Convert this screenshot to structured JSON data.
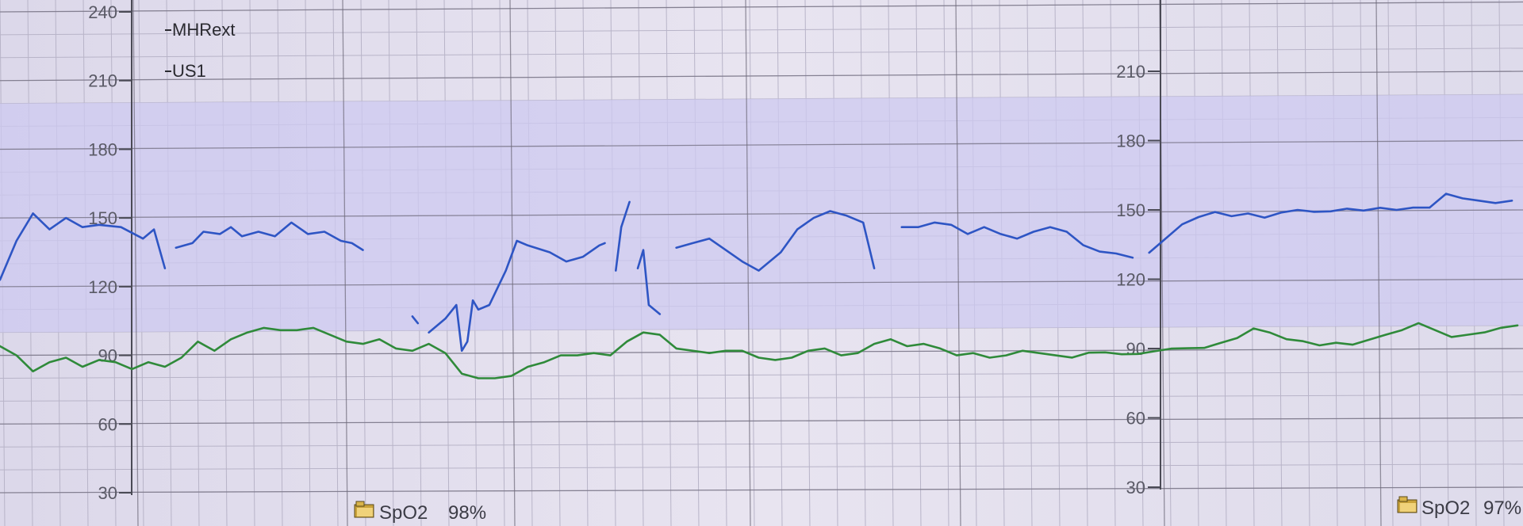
{
  "legend": {
    "series1": "MHRext",
    "series2": "US1"
  },
  "left_panel": {
    "ticks": [
      "240",
      "210",
      "180",
      "150",
      "120",
      "90",
      "60",
      "30"
    ],
    "spo2_label": "SpO2",
    "spo2_value": "98%",
    "spo2_icon": "folder-icon"
  },
  "right_panel": {
    "ticks": [
      "210",
      "180",
      "150",
      "120",
      "90",
      "60",
      "30"
    ],
    "spo2_label": "SpO2",
    "spo2_value": "97%",
    "spo2_icon": "folder-icon"
  },
  "colors": {
    "grid_bg": "#e6e2ee",
    "normal_band": "#cdcaf0",
    "grid_line_minor": "#b8b4c8",
    "grid_line_major": "#6e6a7a",
    "mhrext_line": "#2e55c4",
    "us1_line": "#2f8a3a"
  },
  "chart_data": [
    {
      "type": "line",
      "title": "",
      "xlabel": "",
      "ylabel": "",
      "ylim": [
        30,
        240
      ],
      "y_ticks": [
        30,
        60,
        90,
        120,
        150,
        180,
        210,
        240
      ],
      "shaded_band": [
        100,
        200
      ],
      "grid": true,
      "legend_placement": "top-left",
      "series": [
        {
          "name": "MHRext",
          "points": [
            [
              0,
              123
            ],
            [
              0.03,
              140
            ],
            [
              0.06,
              152
            ],
            [
              0.09,
              145
            ],
            [
              0.12,
              150
            ],
            [
              0.15,
              146
            ],
            [
              0.18,
              147
            ],
            [
              0.22,
              146
            ],
            [
              0.26,
              141
            ],
            [
              0.28,
              145
            ],
            [
              0.3,
              128
            ],
            null,
            [
              0.32,
              137
            ],
            [
              0.35,
              139
            ],
            [
              0.37,
              144
            ],
            [
              0.4,
              143
            ],
            [
              0.42,
              146
            ],
            [
              0.44,
              142
            ],
            [
              0.47,
              144
            ],
            [
              0.5,
              142
            ],
            [
              0.53,
              148
            ],
            [
              0.56,
              143
            ],
            [
              0.59,
              144
            ],
            [
              0.62,
              140
            ],
            [
              0.64,
              139
            ],
            [
              0.66,
              136
            ],
            null,
            [
              0.75,
              107
            ],
            [
              0.76,
              104
            ],
            null,
            [
              0.78,
              100
            ],
            [
              0.81,
              106
            ],
            [
              0.83,
              112
            ],
            [
              0.84,
              92
            ],
            [
              0.85,
              96
            ],
            [
              0.86,
              114
            ],
            [
              0.87,
              110
            ],
            [
              0.89,
              112
            ],
            [
              0.92,
              127
            ],
            [
              0.94,
              140
            ],
            [
              0.96,
              138
            ],
            [
              1.0,
              135
            ],
            [
              1.03,
              131
            ],
            [
              1.06,
              133
            ],
            [
              1.09,
              138
            ],
            [
              1.1,
              139
            ],
            null,
            [
              1.12,
              127
            ],
            [
              1.13,
              146
            ],
            [
              1.145,
              157
            ],
            null,
            [
              1.16,
              128
            ],
            [
              1.17,
              136
            ],
            [
              1.18,
              112
            ],
            [
              1.2,
              108
            ],
            null,
            [
              1.23,
              137
            ],
            [
              1.26,
              139
            ],
            [
              1.29,
              141
            ],
            [
              1.32,
              136
            ],
            [
              1.35,
              131
            ],
            [
              1.38,
              127
            ],
            [
              1.42,
              135
            ],
            [
              1.45,
              145
            ],
            [
              1.48,
              150
            ],
            [
              1.51,
              153
            ],
            [
              1.54,
              151
            ],
            [
              1.57,
              148
            ],
            [
              1.59,
              128
            ],
            null,
            [
              1.64,
              146
            ],
            [
              1.67,
              146
            ],
            [
              1.7,
              148
            ],
            [
              1.73,
              147
            ],
            [
              1.76,
              143
            ],
            [
              1.79,
              146
            ],
            [
              1.82,
              143
            ],
            [
              1.85,
              141
            ],
            [
              1.88,
              144
            ],
            [
              1.91,
              146
            ],
            [
              1.94,
              144
            ],
            [
              1.97,
              138
            ],
            [
              2.0,
              135
            ],
            [
              2.03,
              134
            ],
            [
              2.06,
              132
            ],
            null,
            [
              2.09,
              134
            ],
            [
              2.12,
              140
            ],
            [
              2.15,
              146
            ],
            [
              2.18,
              149
            ],
            [
              2.21,
              151
            ],
            [
              2.24,
              149
            ],
            [
              2.27,
              150
            ],
            [
              2.3,
              148
            ],
            [
              2.33,
              150
            ],
            [
              2.36,
              151
            ],
            [
              2.39,
              150
            ],
            [
              2.42,
              150
            ],
            [
              2.45,
              151
            ],
            [
              2.48,
              150
            ],
            [
              2.51,
              151
            ],
            [
              2.54,
              150
            ],
            [
              2.57,
              151
            ],
            [
              2.6,
              151
            ],
            [
              2.63,
              157
            ],
            [
              2.66,
              155
            ],
            [
              2.69,
              154
            ],
            [
              2.72,
              153
            ],
            [
              2.75,
              154
            ]
          ]
        },
        {
          "name": "US1",
          "points": [
            [
              0,
              94
            ],
            [
              0.03,
              90
            ],
            [
              0.06,
              83
            ],
            [
              0.09,
              87
            ],
            [
              0.12,
              89
            ],
            [
              0.15,
              85
            ],
            [
              0.18,
              88
            ],
            [
              0.21,
              87
            ],
            [
              0.24,
              84
            ],
            [
              0.27,
              87
            ],
            [
              0.3,
              85
            ],
            [
              0.33,
              89
            ],
            [
              0.36,
              96
            ],
            [
              0.39,
              92
            ],
            [
              0.42,
              97
            ],
            [
              0.45,
              100
            ],
            [
              0.48,
              102
            ],
            [
              0.51,
              101
            ],
            [
              0.54,
              101
            ],
            [
              0.57,
              102
            ],
            [
              0.6,
              99
            ],
            [
              0.63,
              96
            ],
            [
              0.66,
              95
            ],
            [
              0.69,
              97
            ],
            [
              0.72,
              93
            ],
            [
              0.75,
              92
            ],
            [
              0.78,
              95
            ],
            [
              0.81,
              91
            ],
            [
              0.84,
              82
            ],
            [
              0.87,
              80
            ],
            [
              0.9,
              80
            ],
            [
              0.93,
              81
            ],
            [
              0.96,
              85
            ],
            [
              0.99,
              87
            ],
            [
              1.02,
              90
            ],
            [
              1.05,
              90
            ],
            [
              1.08,
              91
            ],
            [
              1.11,
              90
            ],
            [
              1.14,
              96
            ],
            [
              1.17,
              100
            ],
            [
              1.2,
              99
            ],
            [
              1.23,
              93
            ],
            [
              1.26,
              92
            ],
            [
              1.29,
              91
            ],
            [
              1.32,
              92
            ],
            [
              1.35,
              92
            ],
            [
              1.38,
              89
            ],
            [
              1.41,
              88
            ],
            [
              1.44,
              89
            ],
            [
              1.47,
              92
            ],
            [
              1.5,
              93
            ],
            [
              1.53,
              90
            ],
            [
              1.56,
              91
            ],
            [
              1.59,
              95
            ],
            [
              1.62,
              97
            ],
            [
              1.65,
              94
            ],
            [
              1.68,
              95
            ],
            [
              1.71,
              93
            ],
            [
              1.74,
              90
            ],
            [
              1.77,
              91
            ],
            [
              1.8,
              89
            ],
            [
              1.83,
              90
            ],
            [
              1.86,
              92
            ],
            [
              1.89,
              91
            ],
            [
              1.92,
              90
            ],
            [
              1.95,
              89
            ],
            [
              1.98,
              91
            ],
            [
              2.01,
              91
            ],
            [
              2.04,
              90
            ],
            [
              2.07,
              90
            ],
            [
              2.1,
              91
            ],
            [
              2.13,
              92
            ],
            [
              2.16,
              92
            ],
            [
              2.19,
              92
            ],
            [
              2.22,
              94
            ],
            [
              2.25,
              96
            ],
            [
              2.28,
              100
            ],
            [
              2.31,
              98
            ],
            [
              2.34,
              95
            ],
            [
              2.37,
              94
            ],
            [
              2.4,
              92
            ],
            [
              2.43,
              93
            ],
            [
              2.46,
              92
            ],
            [
              2.49,
              94
            ],
            [
              2.52,
              96
            ],
            [
              2.55,
              98
            ],
            [
              2.58,
              101
            ],
            [
              2.61,
              98
            ],
            [
              2.64,
              95
            ],
            [
              2.67,
              96
            ],
            [
              2.7,
              97
            ],
            [
              2.73,
              99
            ],
            [
              2.76,
              100
            ]
          ]
        }
      ]
    }
  ]
}
